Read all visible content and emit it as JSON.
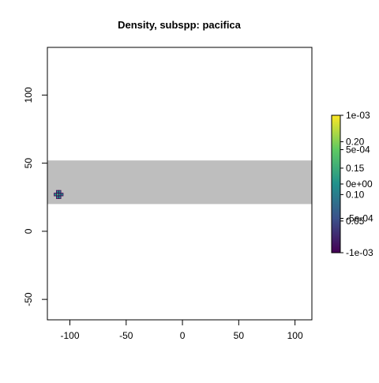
{
  "chart_data": {
    "type": "heatmap",
    "title": "Density, subspp: pacifica",
    "xlabel": "",
    "ylabel": "",
    "xlim": [
      -120,
      115
    ],
    "ylim": [
      -65,
      135
    ],
    "x_ticks": [
      "-100",
      "-50",
      "0",
      "50",
      "100"
    ],
    "x_tick_values": [
      -100,
      -50,
      0,
      50,
      100
    ],
    "y_ticks": [
      "-50",
      "0",
      "50",
      "100"
    ],
    "y_tick_values": [
      -50,
      0,
      50,
      100
    ],
    "grid": false,
    "shaded_band": {
      "ymin": 20,
      "ymax": 52,
      "color": "#bebebe"
    },
    "cells": [
      {
        "x": -111,
        "y": 29,
        "value": 0.0
      },
      {
        "x": -109,
        "y": 29,
        "value": 0.0
      },
      {
        "x": -113,
        "y": 27,
        "value": 0.0
      },
      {
        "x": -111,
        "y": 27,
        "value": 0.00025
      },
      {
        "x": -109,
        "y": 27,
        "value": 0.0
      },
      {
        "x": -107,
        "y": 27,
        "value": 0.0
      },
      {
        "x": -111,
        "y": 25,
        "value": 0.0
      },
      {
        "x": -109,
        "y": 25,
        "value": 0.0
      }
    ],
    "colorbar": {
      "range": [
        -0.001,
        0.001
      ],
      "colors": [
        "#440154",
        "#3b528b",
        "#21918c",
        "#5ec962",
        "#fde725"
      ],
      "primary_labels": [
        {
          "value": 0.001,
          "label": "1e-03"
        },
        {
          "value": 0.0005,
          "label": "5e-04"
        },
        {
          "value": 0.0,
          "label": "0e+00"
        },
        {
          "value": -0.0005,
          "label": "-5e-04"
        },
        {
          "value": -0.001,
          "label": "-1e-03"
        }
      ],
      "secondary_labels": [
        {
          "value": 0.2,
          "label": "0.20"
        },
        {
          "value": 0.15,
          "label": "0.15"
        },
        {
          "value": 0.1,
          "label": "0.10"
        },
        {
          "value": 0.05,
          "label": "0.05"
        }
      ],
      "secondary_range": [
        -0.01,
        0.25
      ]
    }
  }
}
